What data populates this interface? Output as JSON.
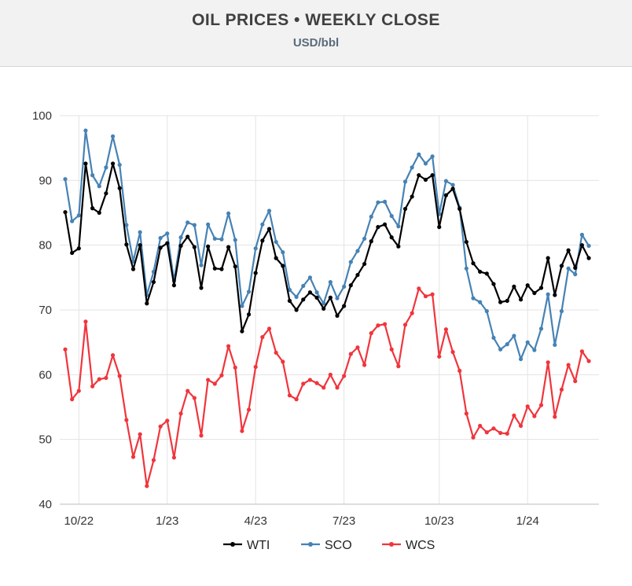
{
  "header": {
    "title": "OIL PRICES • WEEKLY CLOSE",
    "subtitle": "USD/bbl"
  },
  "chart_data": {
    "type": "line",
    "title": "OIL PRICES • WEEKLY CLOSE",
    "subtitle": "USD/bbl",
    "ylim": [
      40,
      100
    ],
    "yticks": [
      40,
      50,
      60,
      70,
      80,
      90,
      100
    ],
    "xtick_labels": [
      "10/22",
      "1/23",
      "4/23",
      "7/23",
      "10/23",
      "1/24"
    ],
    "xtick_index": [
      2,
      15,
      28,
      41,
      55,
      68
    ],
    "grid": true,
    "legend_position": "bottom-center",
    "series": [
      {
        "name": "WTI",
        "color": "#000000",
        "values": [
          85.1,
          78.8,
          79.5,
          92.6,
          85.7,
          85.0,
          88.0,
          92.6,
          88.8,
          80.1,
          76.3,
          80.0,
          71.0,
          74.3,
          79.6,
          80.3,
          73.8,
          79.9,
          81.3,
          79.7,
          73.4,
          79.8,
          76.4,
          76.3,
          79.7,
          76.7,
          66.7,
          69.3,
          75.7,
          80.7,
          82.5,
          78.0,
          76.8,
          71.4,
          70.0,
          71.6,
          72.7,
          71.9,
          70.2,
          71.9,
          69.1,
          70.6,
          73.8,
          75.4,
          77.1,
          80.6,
          82.8,
          83.2,
          81.2,
          79.8,
          85.6,
          87.5,
          90.8,
          90.1,
          90.8,
          82.8,
          87.7,
          88.7,
          85.6,
          80.5,
          77.2,
          75.9,
          75.6,
          74.0,
          71.2,
          71.4,
          73.6,
          71.6,
          73.8,
          72.6,
          73.4,
          78.0,
          72.3,
          76.8,
          79.2,
          76.5,
          80.0,
          78.0
        ]
      },
      {
        "name": "SCO",
        "color": "#4682b4",
        "values": [
          90.2,
          83.7,
          84.6,
          97.7,
          90.8,
          89.1,
          92.0,
          96.8,
          92.4,
          83.1,
          77.5,
          82.0,
          72.3,
          75.9,
          81.1,
          81.8,
          74.5,
          81.2,
          83.5,
          83.1,
          76.9,
          83.2,
          81.0,
          80.9,
          84.9,
          80.8,
          70.6,
          72.8,
          79.5,
          83.2,
          85.3,
          80.5,
          78.9,
          73.1,
          72.0,
          73.7,
          75.0,
          72.7,
          71.0,
          74.3,
          71.8,
          73.6,
          77.4,
          79.1,
          81.0,
          84.4,
          86.6,
          86.7,
          84.5,
          82.9,
          89.8,
          92.0,
          94.0,
          92.6,
          93.7,
          84.8,
          89.9,
          89.3,
          85.8,
          76.4,
          71.8,
          71.2,
          69.8,
          65.7,
          63.9,
          64.7,
          66.0,
          62.4,
          65.0,
          63.8,
          67.1,
          72.4,
          64.6,
          69.8,
          76.4,
          75.5,
          81.6,
          79.9
        ]
      },
      {
        "name": "WCS",
        "color": "#f0353c",
        "values": [
          63.9,
          56.2,
          57.5,
          68.2,
          58.2,
          59.3,
          59.5,
          63.0,
          59.8,
          53.0,
          47.3,
          50.8,
          42.8,
          46.8,
          52.0,
          52.9,
          47.2,
          54.0,
          57.5,
          56.4,
          50.6,
          59.2,
          58.6,
          59.9,
          64.4,
          61.1,
          51.3,
          54.6,
          61.2,
          65.8,
          67.1,
          63.4,
          62.0,
          56.8,
          56.2,
          58.6,
          59.2,
          58.7,
          58.0,
          60.0,
          58.0,
          59.8,
          63.2,
          64.2,
          61.5,
          66.4,
          67.6,
          67.8,
          63.9,
          61.3,
          67.7,
          69.5,
          73.3,
          72.1,
          72.4,
          62.8,
          67.0,
          63.5,
          60.6,
          54.0,
          50.3,
          52.1,
          51.1,
          51.7,
          51.0,
          50.9,
          53.7,
          52.1,
          55.1,
          53.6,
          55.3,
          61.9,
          53.5,
          57.7,
          61.5,
          59.0,
          63.6,
          62.1
        ]
      }
    ]
  }
}
